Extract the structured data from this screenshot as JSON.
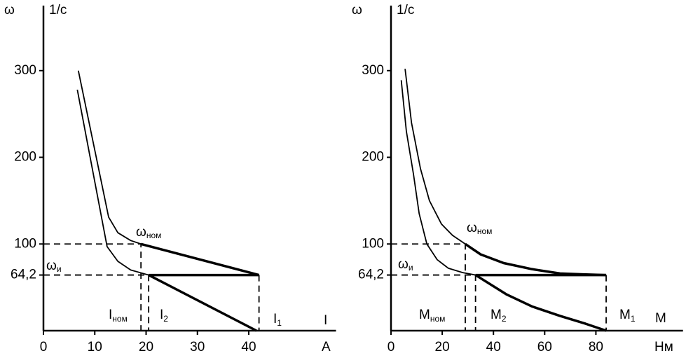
{
  "chart_data": [
    {
      "type": "line",
      "ylabel": "ω",
      "yunit": "1/с",
      "xlabel": "I",
      "xunit": "A",
      "xlim": [
        0,
        57
      ],
      "ylim": [
        0,
        375
      ],
      "xticks": [
        0,
        10,
        20,
        30,
        40
      ],
      "yticks": [
        {
          "value": 64.2,
          "label": "64,2"
        },
        100,
        200,
        300
      ],
      "annotations": [
        {
          "text": "ω",
          "sub": "ном"
        },
        {
          "text": "ω",
          "sub": "и"
        },
        {
          "text": "I",
          "sub": "ном"
        },
        {
          "text": "I",
          "sub": "2"
        },
        {
          "text": "I",
          "sub": "1"
        }
      ],
      "series": [
        {
          "color": "#000",
          "width": 1.8,
          "x": [
            6.8,
            12.7,
            14.5,
            17,
            19
          ],
          "values": [
            300,
            131,
            113,
            104,
            100
          ]
        },
        {
          "color": "#000",
          "width": 3.5,
          "x": [
            19,
            42
          ],
          "values": [
            100,
            64.2
          ]
        },
        {
          "color": "#000",
          "width": 1.8,
          "x": [
            6.6,
            12.4,
            14.5,
            17,
            20.5
          ],
          "values": [
            278,
            97,
            80,
            70,
            64.2
          ]
        },
        {
          "color": "#000",
          "width": 3.5,
          "x": [
            20.5,
            42
          ],
          "values": [
            64.2,
            64.2
          ]
        },
        {
          "color": "#000",
          "width": 3.5,
          "x": [
            20.5,
            41.5
          ],
          "values": [
            64.2,
            0
          ]
        },
        {
          "color": "#000",
          "width": 1.8,
          "style": "dashed",
          "x": [
            0,
            19,
            19
          ],
          "values": [
            100,
            100,
            0
          ]
        },
        {
          "color": "#000",
          "width": 1.8,
          "style": "dashed",
          "x": [
            0,
            20.5,
            20.5
          ],
          "values": [
            64.2,
            64.2,
            0
          ]
        },
        {
          "color": "#000",
          "width": 1.8,
          "style": "dashed",
          "x": [
            42,
            42
          ],
          "values": [
            64.2,
            0
          ]
        }
      ]
    },
    {
      "type": "line",
      "ylabel": "ω",
      "yunit": "1/с",
      "xlabel": "M",
      "xunit": "Нм",
      "xlim": [
        0,
        114
      ],
      "ylim": [
        0,
        375
      ],
      "xticks": [
        0,
        20,
        40,
        60,
        80
      ],
      "yticks": [
        {
          "value": 64.2,
          "label": "64,2"
        },
        100,
        200,
        300
      ],
      "annotations": [
        {
          "text": "ω",
          "sub": "ном"
        },
        {
          "text": "ω",
          "sub": "и"
        },
        {
          "text": "M",
          "sub": "ном"
        },
        {
          "text": "M",
          "sub": "2"
        },
        {
          "text": "M",
          "sub": "1"
        }
      ],
      "series": [
        {
          "color": "#000",
          "width": 1.8,
          "x": [
            5.5,
            8,
            11.5,
            15,
            19.7,
            24,
            29
          ],
          "values": [
            302,
            240,
            187,
            150,
            123,
            110,
            100
          ]
        },
        {
          "color": "#000",
          "width": 3.5,
          "x": [
            29,
            35,
            44,
            55,
            66,
            75,
            84
          ],
          "values": [
            100,
            88,
            78,
            71,
            66,
            65,
            64.2
          ]
        },
        {
          "color": "#000",
          "width": 1.8,
          "x": [
            4,
            6,
            8.8,
            11,
            14,
            18,
            22.4,
            28,
            33
          ],
          "values": [
            289,
            230,
            180,
            135,
            100,
            82,
            72,
            67,
            64.2
          ]
        },
        {
          "color": "#000",
          "width": 3.5,
          "x": [
            33,
            84
          ],
          "values": [
            64.2,
            64.2
          ]
        },
        {
          "color": "#000",
          "width": 3.5,
          "x": [
            33,
            45,
            55,
            66,
            76,
            84
          ],
          "values": [
            64.2,
            42,
            28,
            17,
            8,
            0
          ]
        },
        {
          "color": "#000",
          "width": 1.8,
          "style": "dashed",
          "x": [
            0,
            29,
            29
          ],
          "values": [
            100,
            100,
            0
          ]
        },
        {
          "color": "#000",
          "width": 1.8,
          "style": "dashed",
          "x": [
            0,
            33,
            33
          ],
          "values": [
            64.2,
            64.2,
            0
          ]
        },
        {
          "color": "#000",
          "width": 1.8,
          "style": "dashed",
          "x": [
            84,
            84
          ],
          "values": [
            64.2,
            0
          ]
        }
      ]
    }
  ]
}
